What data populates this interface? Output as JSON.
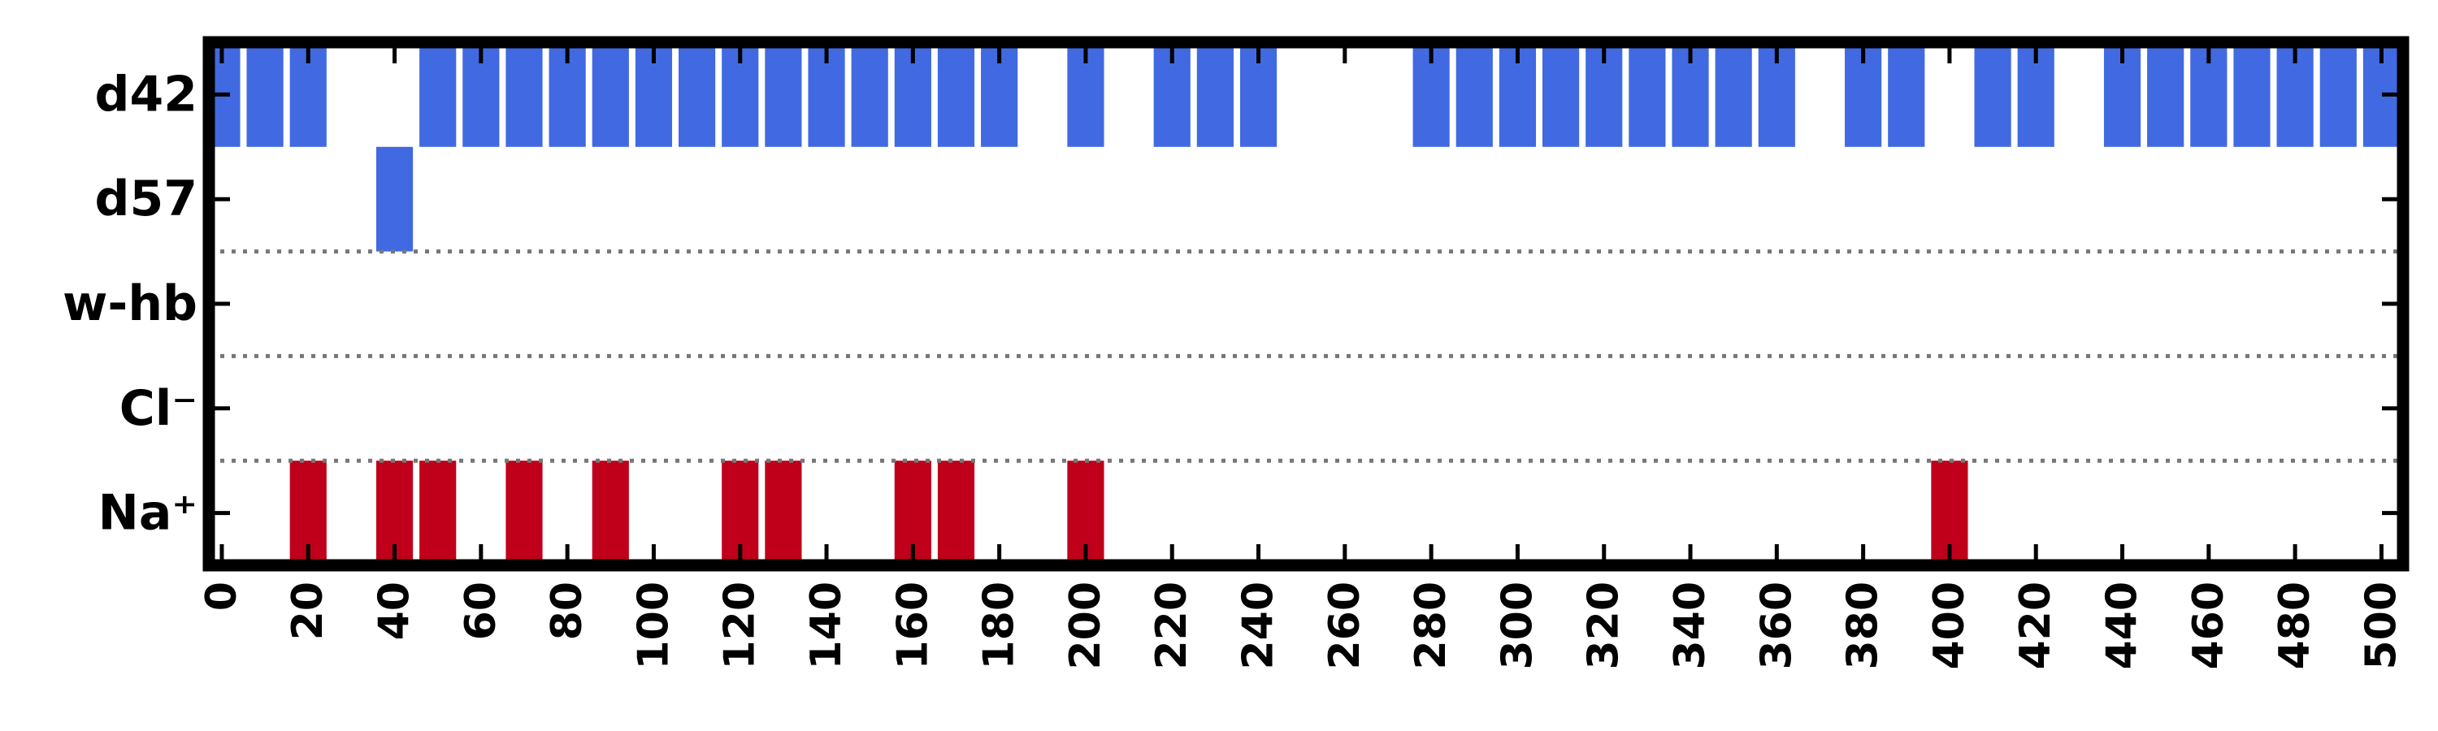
{
  "chart_data": {
    "type": "bar",
    "title": "",
    "xlabel": "",
    "ylabel": "",
    "xlim": [
      -3,
      505
    ],
    "x_ticks": [
      0,
      20,
      40,
      60,
      80,
      100,
      120,
      140,
      160,
      180,
      200,
      220,
      240,
      260,
      280,
      300,
      320,
      340,
      360,
      380,
      400,
      420,
      440,
      460,
      480,
      500
    ],
    "bar_width": 8.5,
    "rows": [
      {
        "label": "d42",
        "color": "#4169e1"
      },
      {
        "label": "d57",
        "color": "#4169e1"
      },
      {
        "label": "w-hb",
        "color": "#4169e1"
      },
      {
        "label": "Cl⁻",
        "color": "#4169e1"
      },
      {
        "label": "Na⁺",
        "color": "#c0001a"
      }
    ],
    "separators_after_rows": [
      "d57",
      "w-hb",
      "Cl⁻"
    ],
    "grid": false,
    "series": [
      {
        "row": "d42",
        "x": [
          0,
          10,
          20,
          50,
          60,
          70,
          80,
          90,
          100,
          110,
          120,
          130,
          140,
          150,
          160,
          170,
          180,
          200,
          220,
          230,
          240,
          280,
          290,
          300,
          310,
          320,
          330,
          340,
          350,
          360,
          380,
          390,
          410,
          420,
          440,
          450,
          460,
          470,
          480,
          490,
          500
        ]
      },
      {
        "row": "d57",
        "x": [
          40
        ]
      },
      {
        "row": "w-hb",
        "x": []
      },
      {
        "row": "Cl⁻",
        "x": []
      },
      {
        "row": "Na⁺",
        "x": [
          20,
          40,
          50,
          70,
          90,
          120,
          130,
          160,
          170,
          200,
          400
        ]
      }
    ]
  }
}
